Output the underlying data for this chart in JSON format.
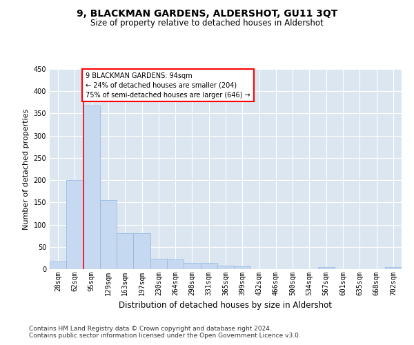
{
  "title": "9, BLACKMAN GARDENS, ALDERSHOT, GU11 3QT",
  "subtitle": "Size of property relative to detached houses in Aldershot",
  "xlabel": "Distribution of detached houses by size in Aldershot",
  "ylabel": "Number of detached properties",
  "footnote1": "Contains HM Land Registry data © Crown copyright and database right 2024.",
  "footnote2": "Contains public sector information licensed under the Open Government Licence v3.0.",
  "bin_labels": [
    "28sqm",
    "62sqm",
    "95sqm",
    "129sqm",
    "163sqm",
    "197sqm",
    "230sqm",
    "264sqm",
    "298sqm",
    "331sqm",
    "365sqm",
    "399sqm",
    "432sqm",
    "466sqm",
    "500sqm",
    "534sqm",
    "567sqm",
    "601sqm",
    "635sqm",
    "668sqm",
    "702sqm"
  ],
  "bar_values": [
    17,
    200,
    367,
    155,
    80,
    80,
    23,
    22,
    14,
    14,
    7,
    6,
    0,
    0,
    0,
    0,
    5,
    0,
    0,
    0,
    5
  ],
  "bar_color": "#c6d9f1",
  "bar_edgecolor": "#8db4e2",
  "redline_index": 2,
  "annotation_text": "9 BLACKMAN GARDENS: 94sqm\n← 24% of detached houses are smaller (204)\n75% of semi-detached houses are larger (646) →",
  "annotation_box_color": "white",
  "annotation_box_edgecolor": "red",
  "redline_color": "red",
  "ylim": [
    0,
    450
  ],
  "yticks": [
    0,
    50,
    100,
    150,
    200,
    250,
    300,
    350,
    400,
    450
  ],
  "background_color": "#dce6f1",
  "grid_color": "white",
  "title_fontsize": 10,
  "subtitle_fontsize": 8.5,
  "axis_label_fontsize": 8,
  "tick_fontsize": 7,
  "annotation_fontsize": 7,
  "footnote_fontsize": 6.5
}
